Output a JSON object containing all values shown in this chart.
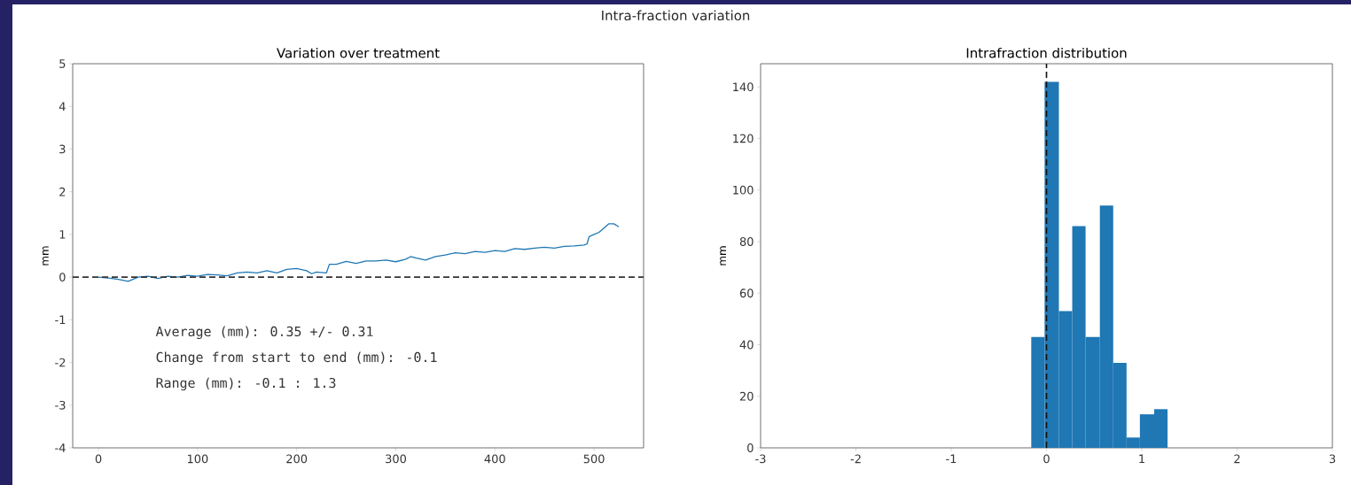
{
  "chart_data": [
    {
      "type": "line",
      "title": "Variation over treatment",
      "ylabel": "mm",
      "annotations": [
        "Intra-fraction variation",
        "Average (mm):  0.35  +/-  0.31",
        "Change from start to end (mm):  -0.1",
        "Range (mm):  -0.1  :  1.3"
      ],
      "x": [
        0,
        10,
        20,
        30,
        40,
        50,
        60,
        70,
        80,
        90,
        100,
        110,
        120,
        130,
        140,
        150,
        160,
        170,
        180,
        190,
        200,
        210,
        215,
        220,
        230,
        233,
        240,
        250,
        260,
        270,
        280,
        290,
        300,
        310,
        315,
        320,
        330,
        340,
        350,
        360,
        370,
        380,
        390,
        400,
        410,
        420,
        430,
        440,
        450,
        460,
        470,
        480,
        490,
        493,
        495,
        500,
        505,
        510,
        515,
        520,
        525
      ],
      "values": [
        0.0,
        -0.02,
        -0.05,
        -0.1,
        0.0,
        0.02,
        -0.03,
        0.02,
        0.0,
        0.04,
        0.02,
        0.06,
        0.05,
        0.03,
        0.1,
        0.12,
        0.1,
        0.15,
        0.1,
        0.18,
        0.2,
        0.15,
        0.08,
        0.12,
        0.1,
        0.3,
        0.3,
        0.37,
        0.32,
        0.38,
        0.38,
        0.4,
        0.36,
        0.42,
        0.48,
        0.45,
        0.4,
        0.48,
        0.52,
        0.57,
        0.55,
        0.6,
        0.58,
        0.62,
        0.6,
        0.67,
        0.65,
        0.68,
        0.7,
        0.68,
        0.72,
        0.73,
        0.75,
        0.78,
        0.95,
        1.0,
        1.05,
        1.15,
        1.25,
        1.25,
        1.18
      ],
      "color": "#1f77b4",
      "xlim": [
        -26,
        550
      ],
      "xticks": [
        0,
        100,
        200,
        300,
        400,
        500
      ],
      "ylim": [
        -4,
        5
      ],
      "yticks": [
        -4,
        -3,
        -2,
        -1,
        0,
        1,
        2,
        3,
        4,
        5
      ],
      "ref_lines": [
        {
          "axis": "y",
          "value": 0,
          "color": "#333333",
          "line_style": "dashed"
        }
      ]
    },
    {
      "type": "histogram",
      "title": "Intrafraction distribution",
      "ylabel": "mm",
      "bins": [
        -0.16,
        -0.02,
        0.13,
        0.27,
        0.41,
        0.56,
        0.7,
        0.84,
        0.98,
        1.13,
        1.27
      ],
      "values": [
        43,
        142,
        53,
        86,
        43,
        94,
        33,
        4,
        13,
        15
      ],
      "color": "#1f77b4",
      "xlim": [
        -3,
        3
      ],
      "xticks": [
        -3,
        -2,
        -1,
        0,
        1,
        2,
        3
      ],
      "ylim": [
        0,
        149
      ],
      "yticks": [
        0,
        20,
        40,
        60,
        80,
        100,
        120,
        140
      ],
      "ref_lines": [
        {
          "axis": "x",
          "value": 0,
          "color": "#111111",
          "line_style": "dashed"
        }
      ]
    }
  ]
}
